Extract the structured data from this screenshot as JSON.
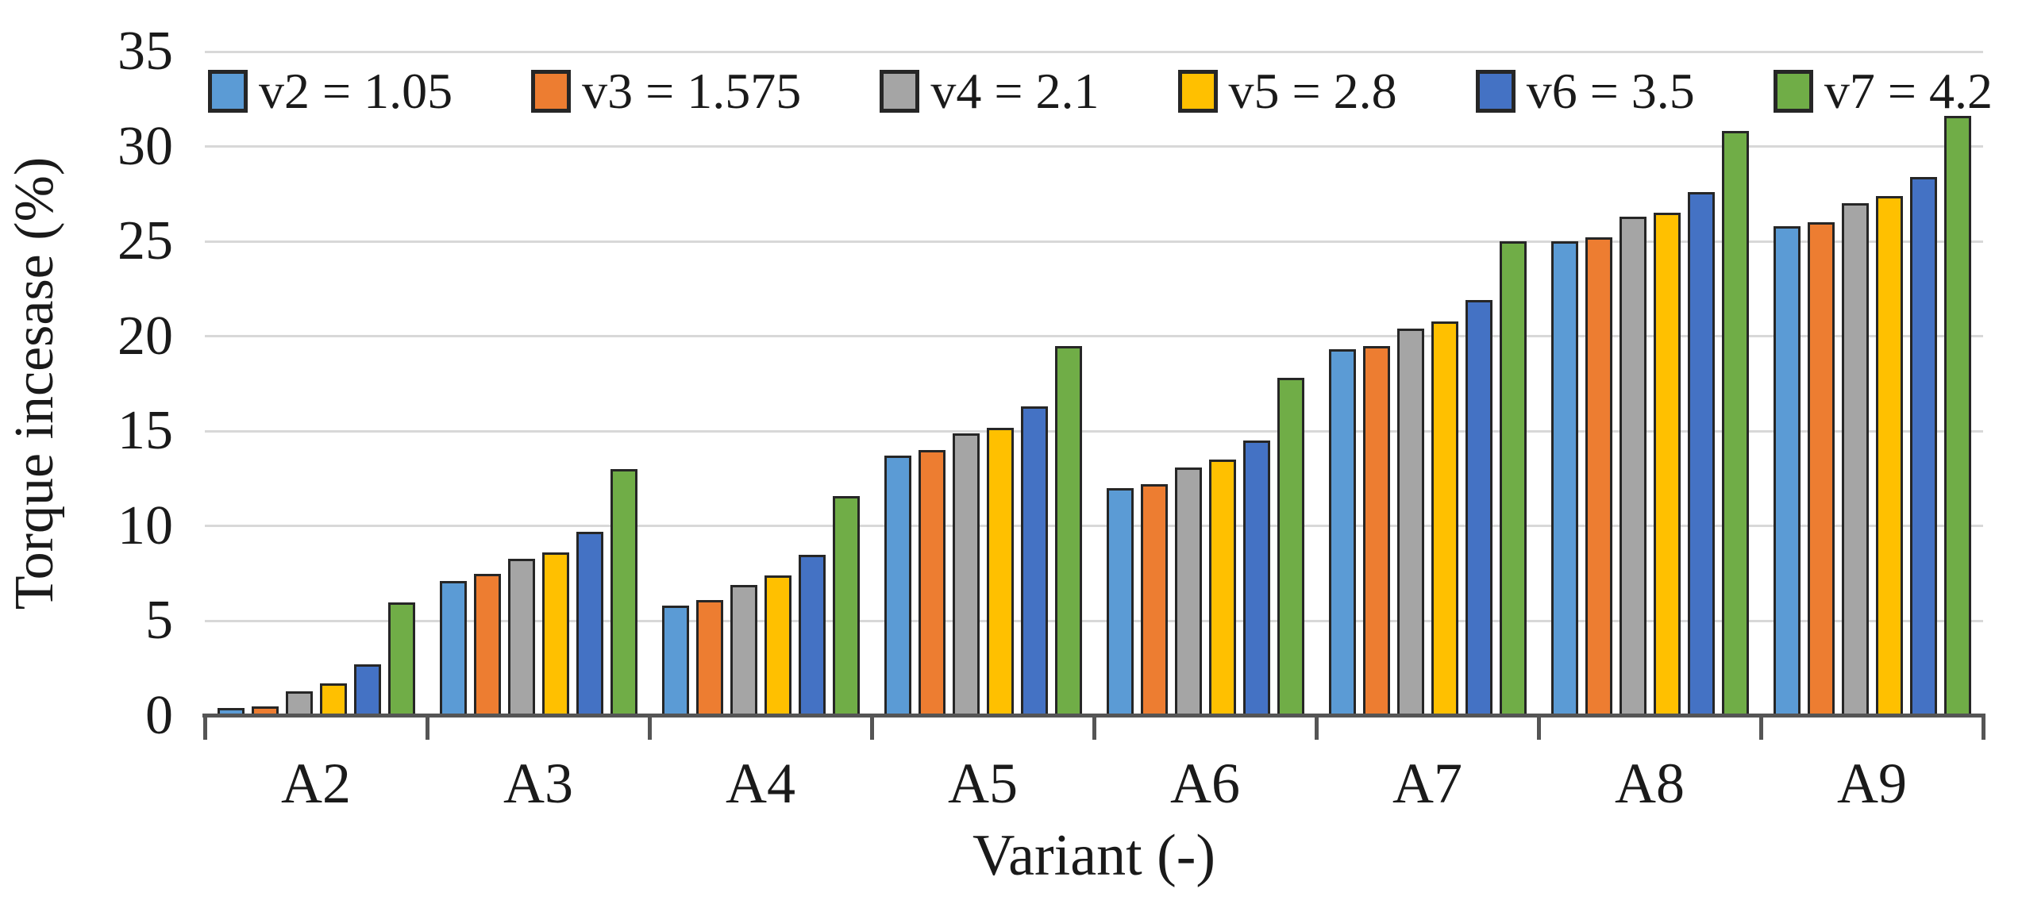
{
  "chart_data": {
    "type": "bar",
    "title": "",
    "xlabel": "Variant (-)",
    "ylabel": "Torque incesase (%)",
    "ylim": [
      0,
      35
    ],
    "yticks": [
      0,
      5,
      10,
      15,
      20,
      25,
      30,
      35
    ],
    "grid": "horizontal gridlines every 5 units",
    "legend_position": "top",
    "categories": [
      "A2",
      "A3",
      "A4",
      "A5",
      "A6",
      "A7",
      "A8",
      "A9"
    ],
    "series": [
      {
        "name": "v2 = 1.05",
        "color": "#5B9BD5",
        "values": [
          0.4,
          7.1,
          5.8,
          13.7,
          12.0,
          19.3,
          25.0,
          25.8
        ]
      },
      {
        "name": "v3 = 1.575",
        "color": "#ED7D31",
        "values": [
          0.5,
          7.5,
          6.1,
          14.0,
          12.2,
          19.5,
          25.2,
          26.0
        ]
      },
      {
        "name": "v4 = 2.1",
        "color": "#A5A5A5",
        "values": [
          1.3,
          8.3,
          6.9,
          14.9,
          13.1,
          20.4,
          26.3,
          27.0
        ]
      },
      {
        "name": "v5 = 2.8",
        "color": "#FFC000",
        "values": [
          1.7,
          8.6,
          7.4,
          15.2,
          13.5,
          20.8,
          26.5,
          27.4
        ]
      },
      {
        "name": "v6 = 3.5",
        "color": "#4472C4",
        "values": [
          2.7,
          9.7,
          8.5,
          16.3,
          14.5,
          21.9,
          27.6,
          28.4
        ]
      },
      {
        "name": "v7 = 4.2",
        "color": "#70AD47",
        "values": [
          6.0,
          13.0,
          11.6,
          19.5,
          17.8,
          25.0,
          30.8,
          31.6
        ]
      }
    ],
    "colors": {
      "gridline": "#d8d8d8",
      "axis": "#555555",
      "bar_border": "#262626",
      "text": "#1a1a1a"
    }
  }
}
